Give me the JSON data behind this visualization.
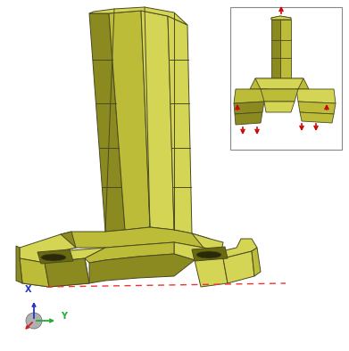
{
  "background_color": "#ffffff",
  "olive_edge": "#4a4a22",
  "olive_light": "#d4d455",
  "olive_mid": "#bcbc38",
  "olive_dark": "#8a8a20",
  "olive_vdark": "#6a6a10",
  "red_arrow": "#cc0000",
  "dashed_color": "#ee3333",
  "axis_x_color": "#2233cc",
  "axis_y_color": "#22aa33",
  "axis_z_color": "#cc2222",
  "inset_border": "#888888"
}
